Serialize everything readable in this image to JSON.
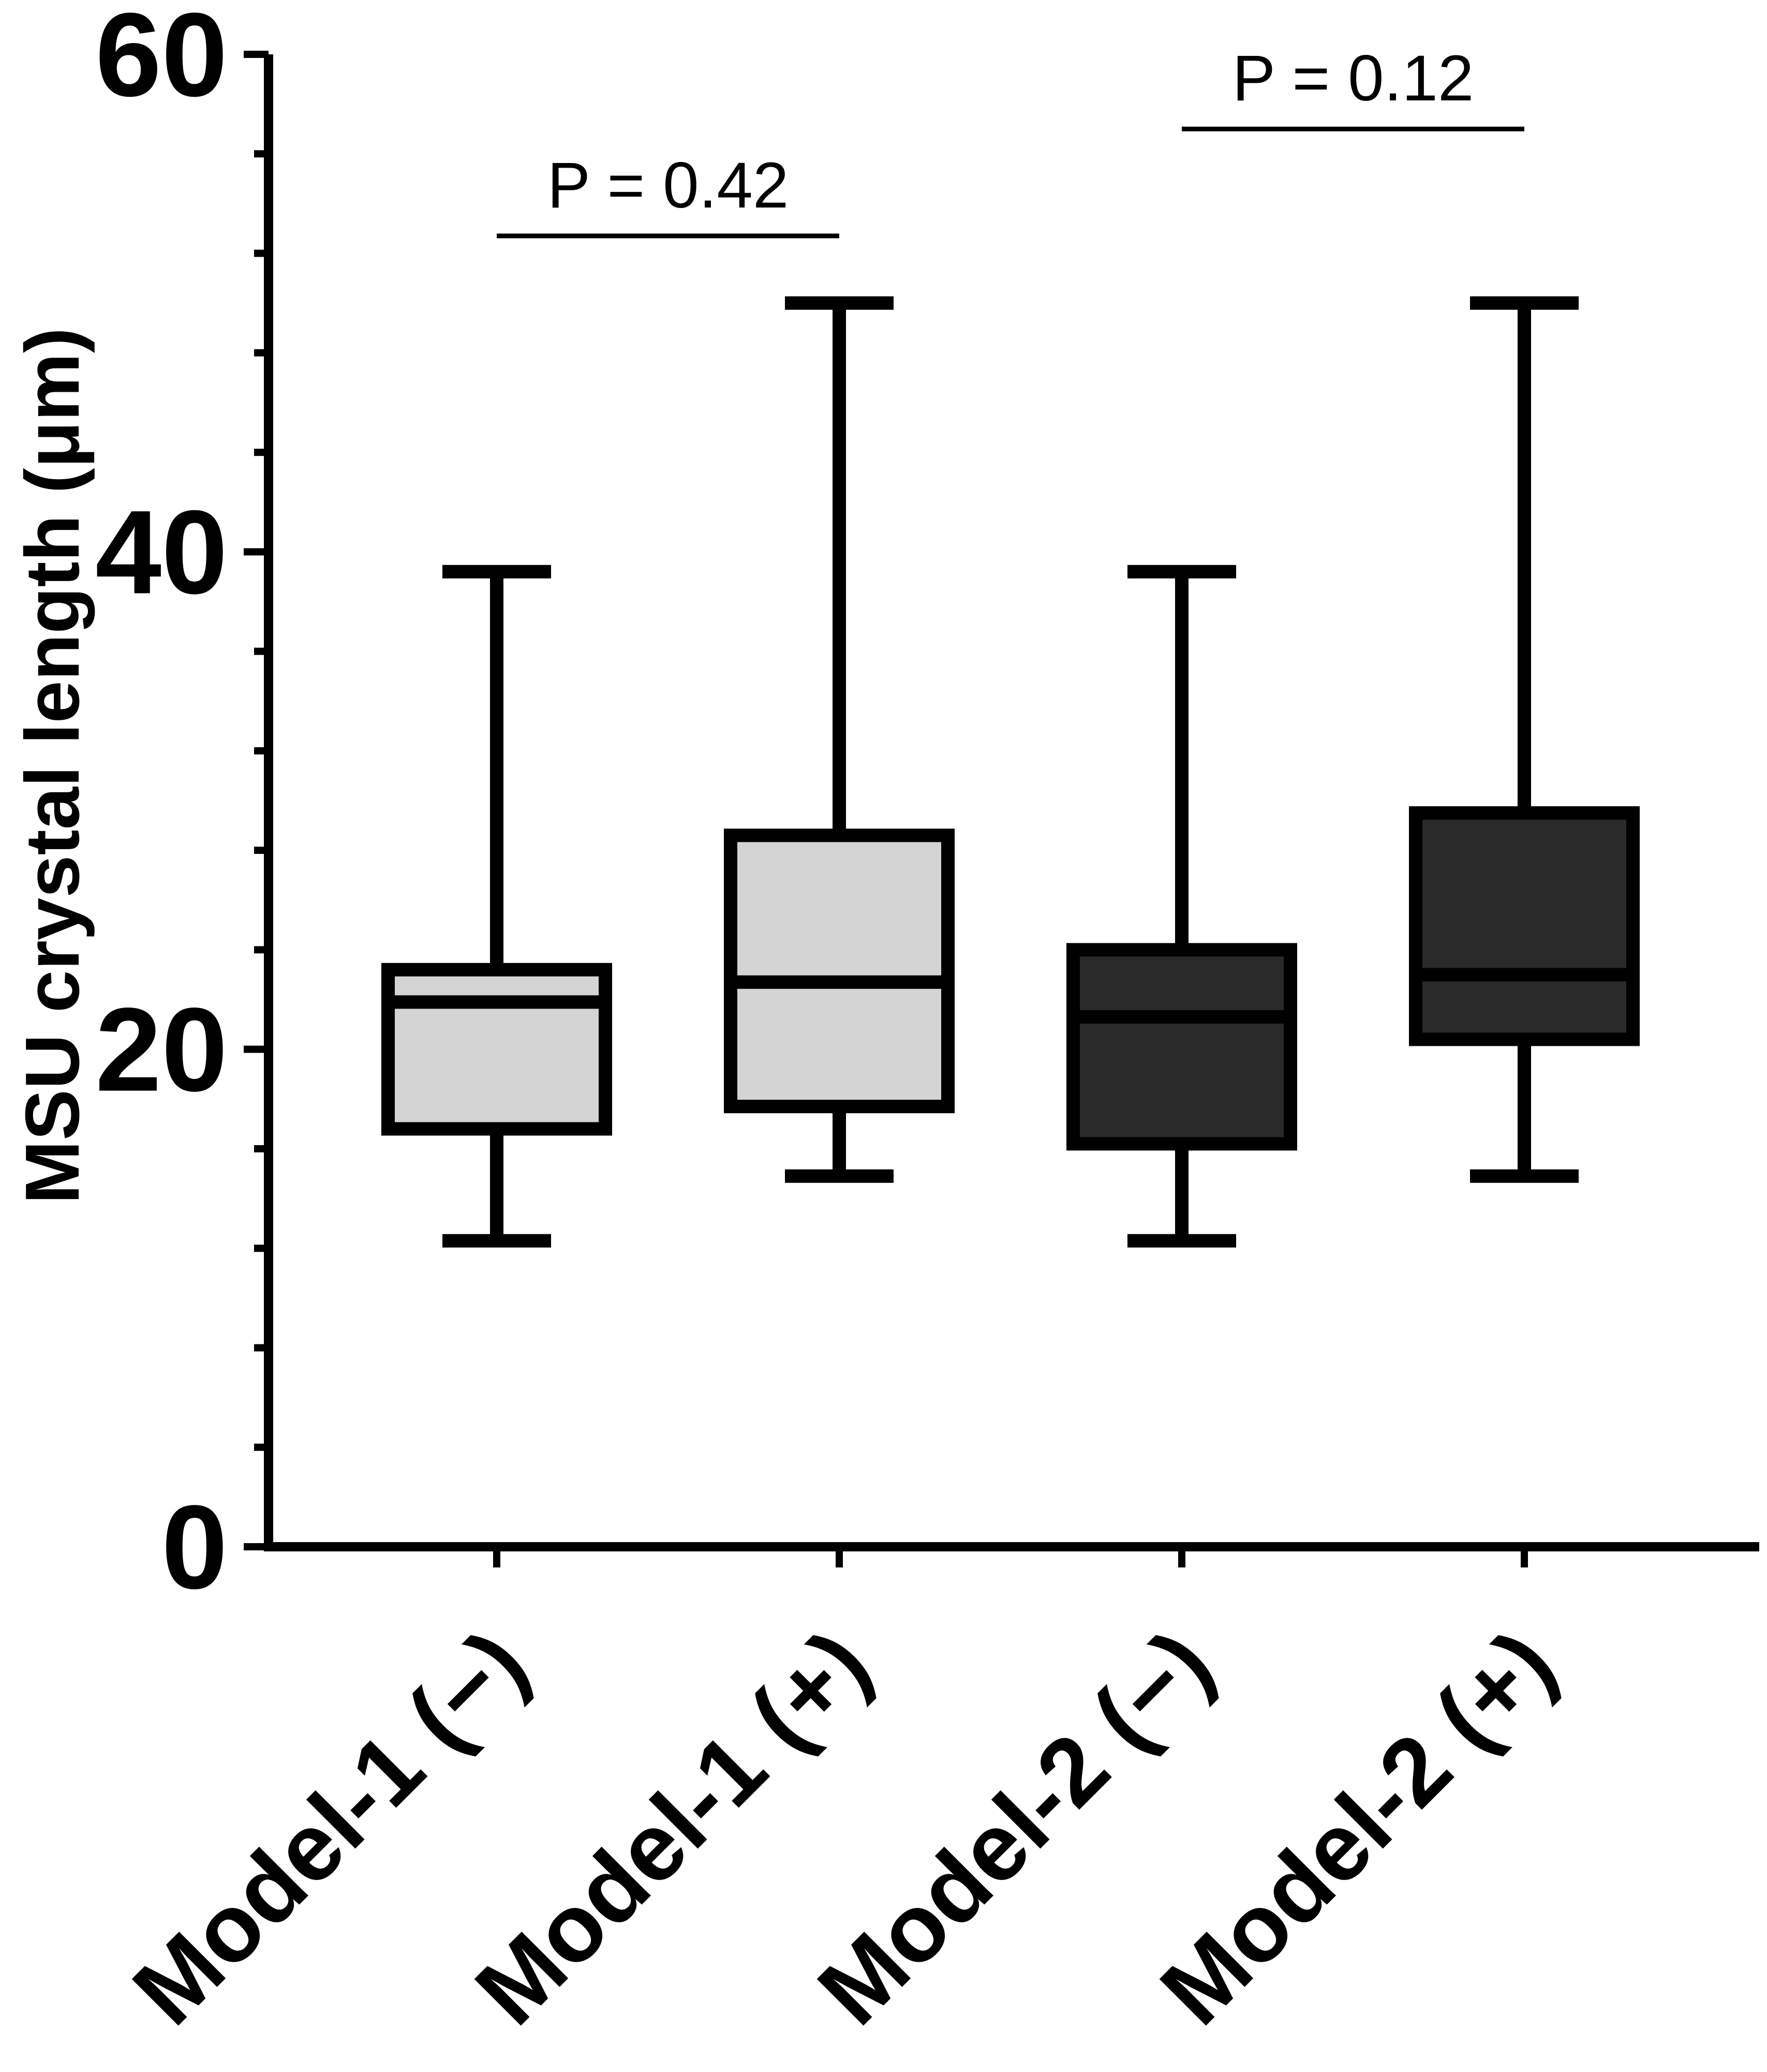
{
  "chart_data": {
    "type": "box",
    "title": "",
    "xlabel": "",
    "ylabel": "MSU crystal length (μm)",
    "ylim": [
      0,
      60
    ],
    "yticks": [
      0,
      20,
      40,
      60
    ],
    "y_minor_step": 4,
    "categories": [
      "Model-1 (−)",
      "Model-1 (+)",
      "Model-2 (−)",
      "Model-2 (+)"
    ],
    "boxes": [
      {
        "name": "Model-1 (−)",
        "min": 12.3,
        "q1": 16.8,
        "median": 21.9,
        "q3": 23.2,
        "max": 39.2,
        "fill": "#d4d4d4"
      },
      {
        "name": "Model-1 (+)",
        "min": 14.9,
        "q1": 17.7,
        "median": 22.7,
        "q3": 28.6,
        "max": 50.0,
        "fill": "#d4d4d4"
      },
      {
        "name": "Model-2 (−)",
        "min": 12.3,
        "q1": 16.2,
        "median": 21.3,
        "q3": 24.0,
        "max": 39.2,
        "fill": "#2a2a2a"
      },
      {
        "name": "Model-2 (+)",
        "min": 14.9,
        "q1": 20.4,
        "median": 23.0,
        "q3": 29.5,
        "max": 50.0,
        "fill": "#2a2a2a"
      }
    ],
    "annotations": [
      {
        "text": "P = 0.42",
        "from": 0,
        "to": 1,
        "y": 52.7
      },
      {
        "text": "P = 0.12",
        "from": 2,
        "to": 3,
        "y": 57.0
      }
    ]
  }
}
